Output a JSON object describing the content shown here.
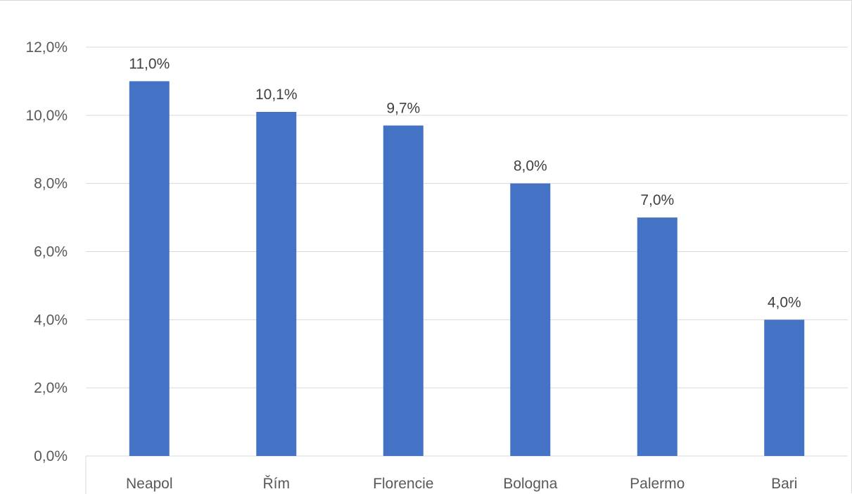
{
  "chart_data": {
    "type": "bar",
    "categories": [
      "Neapol",
      "Řím",
      "Florencie",
      "Bologna",
      "Palermo",
      "Bari"
    ],
    "values": [
      11.0,
      10.1,
      9.7,
      8.0,
      7.0,
      4.0
    ],
    "data_labels": [
      "11,0%",
      "10,1%",
      "9,7%",
      "8,0%",
      "7,0%",
      "4,0%"
    ],
    "y_ticks": [
      0,
      2,
      4,
      6,
      8,
      10,
      12
    ],
    "y_tick_labels": [
      "0,0%",
      "2,0%",
      "4,0%",
      "6,0%",
      "8,0%",
      "10,0%",
      "12,0%"
    ],
    "ylim": [
      0,
      12
    ],
    "bar_color": "#4472c4",
    "grid": true,
    "gridline_color": "#d9d9d9",
    "title": "",
    "xlabel": "",
    "ylabel": ""
  }
}
